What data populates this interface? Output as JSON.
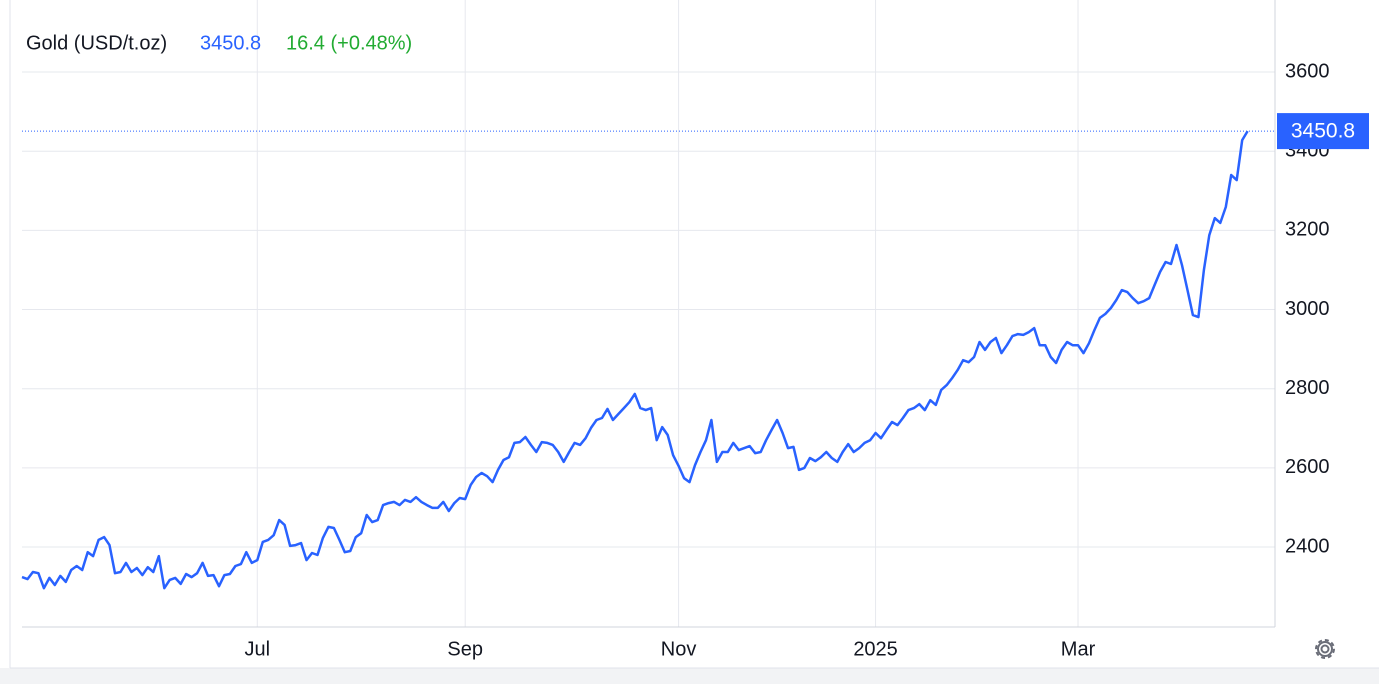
{
  "chart_data": {
    "type": "line",
    "change_label": "16.4 (+0.48%)",
    "series": [
      {
        "name": "Gold (USD/t.oz)",
        "color": "#2962ff",
        "values": [
          2324,
          2319,
          2337,
          2334,
          2296,
          2322,
          2304,
          2327,
          2312,
          2342,
          2352,
          2342,
          2387,
          2377,
          2418,
          2425,
          2405,
          2334,
          2337,
          2360,
          2337,
          2347,
          2329,
          2349,
          2337,
          2377,
          2296,
          2317,
          2322,
          2307,
          2332,
          2324,
          2334,
          2360,
          2327,
          2329,
          2301,
          2329,
          2332,
          2352,
          2357,
          2387,
          2360,
          2367,
          2413,
          2418,
          2430,
          2468,
          2456,
          2403,
          2405,
          2410,
          2367,
          2385,
          2380,
          2423,
          2451,
          2448,
          2418,
          2387,
          2390,
          2425,
          2435,
          2481,
          2463,
          2468,
          2506,
          2511,
          2514,
          2506,
          2519,
          2514,
          2526,
          2514,
          2506,
          2499,
          2499,
          2514,
          2491,
          2511,
          2524,
          2521,
          2557,
          2577,
          2587,
          2579,
          2564,
          2595,
          2620,
          2627,
          2663,
          2665,
          2678,
          2658,
          2640,
          2665,
          2663,
          2658,
          2640,
          2615,
          2640,
          2663,
          2658,
          2675,
          2701,
          2721,
          2726,
          2749,
          2721,
          2736,
          2751,
          2766,
          2787,
          2751,
          2746,
          2751,
          2670,
          2703,
          2683,
          2632,
          2605,
          2574,
          2564,
          2607,
          2640,
          2670,
          2721,
          2615,
          2640,
          2640,
          2663,
          2645,
          2650,
          2655,
          2637,
          2640,
          2670,
          2696,
          2721,
          2688,
          2650,
          2653,
          2595,
          2600,
          2625,
          2617,
          2627,
          2640,
          2625,
          2615,
          2640,
          2660,
          2640,
          2650,
          2663,
          2670,
          2688,
          2675,
          2696,
          2716,
          2708,
          2726,
          2746,
          2751,
          2761,
          2746,
          2771,
          2759,
          2797,
          2809,
          2827,
          2847,
          2872,
          2867,
          2880,
          2918,
          2898,
          2918,
          2928,
          2890,
          2910,
          2933,
          2938,
          2936,
          2943,
          2953,
          2910,
          2910,
          2880,
          2865,
          2898,
          2918,
          2910,
          2910,
          2890,
          2915,
          2948,
          2979,
          2989,
          3004,
          3024,
          3049,
          3044,
          3029,
          3016,
          3021,
          3029,
          3062,
          3095,
          3120,
          3115,
          3163,
          3112,
          3049,
          2986,
          2981,
          3100,
          3188,
          3231,
          3219,
          3259,
          3340,
          3327,
          3428,
          3450.8
        ]
      }
    ],
    "xlim": [
      0,
      229
    ],
    "xticks": [
      {
        "value": 43,
        "label": "Jul"
      },
      {
        "value": 81,
        "label": "Sep"
      },
      {
        "value": 120,
        "label": "Nov"
      },
      {
        "value": 156,
        "label": "2025"
      },
      {
        "value": 193,
        "label": "Mar"
      }
    ],
    "ylim": [
      2198,
      3782
    ],
    "yticks": [
      2400,
      2600,
      2800,
      3000,
      3200,
      3400,
      3600
    ],
    "grid": true
  }
}
